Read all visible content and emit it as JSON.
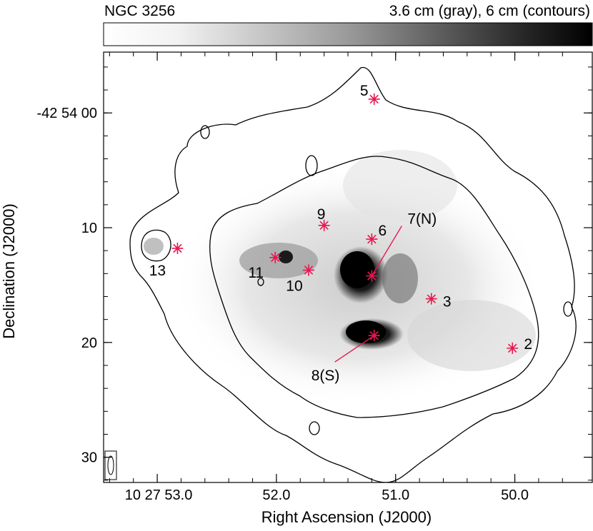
{
  "header": {
    "title": "NGC 3256",
    "subtitle": "3.6 cm (gray),  6 cm (contours)"
  },
  "chart_data": {
    "type": "scatter",
    "title": "NGC 3256",
    "subtitle": "3.6 cm (gray),  6 cm (contours)",
    "xlabel": "Right Ascension (J2000)",
    "ylabel": "Declination (J2000)",
    "x_ticks": [
      {
        "value": 53.0,
        "label": "10 27 53.0"
      },
      {
        "value": 52.0,
        "label": "52.0"
      },
      {
        "value": 51.0,
        "label": "51.0"
      },
      {
        "value": 50.0,
        "label": "50.0"
      }
    ],
    "y_ticks": [
      {
        "value": 0,
        "label": "-42 54 00"
      },
      {
        "value": 10,
        "label": "10"
      },
      {
        "value": 20,
        "label": "20"
      },
      {
        "value": 30,
        "label": "30"
      }
    ],
    "xlim": [
      53.45,
      49.35
    ],
    "ylim": [
      -5.3,
      32.2
    ],
    "x_inverted": true,
    "y_inverted": true,
    "colorbar": "gray",
    "marker_color": "#e8174f",
    "contour_color": "#000000",
    "sources": [
      {
        "label": "2",
        "ra": 50.02,
        "dec": 20.5
      },
      {
        "label": "3",
        "ra": 50.7,
        "dec": 16.2
      },
      {
        "label": "5",
        "ra": 51.18,
        "dec": -1.2
      },
      {
        "label": "6",
        "ra": 51.2,
        "dec": 11.0
      },
      {
        "label": "7(N)",
        "ra": 51.2,
        "dec": 14.2
      },
      {
        "label": "8(S)",
        "ra": 51.18,
        "dec": 19.4
      },
      {
        "label": "9",
        "ra": 51.6,
        "dec": 9.8
      },
      {
        "label": "10",
        "ra": 51.73,
        "dec": 13.7
      },
      {
        "label": "11",
        "ra": 52.01,
        "dec": 12.6
      },
      {
        "label": "13",
        "ra": 52.83,
        "dec": 11.8
      }
    ]
  }
}
